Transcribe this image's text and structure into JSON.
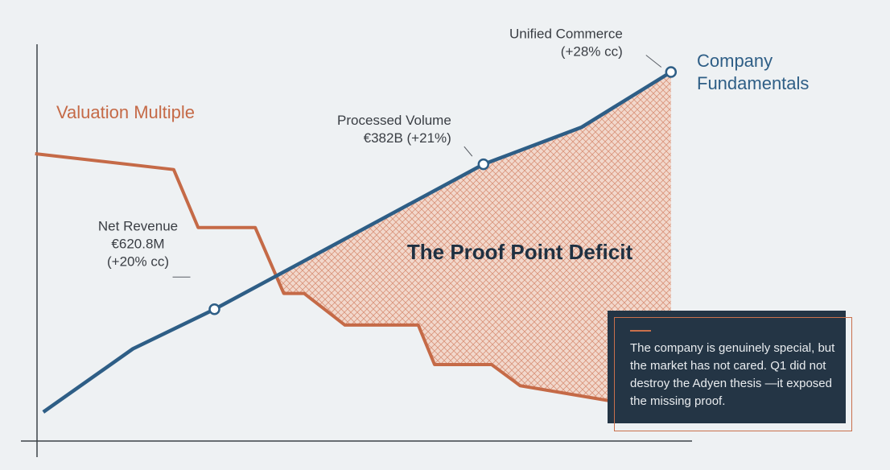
{
  "chart_data": {
    "type": "line",
    "annotation": "The Proof Point Deficit",
    "colors": {
      "valuation": "#c56a47",
      "fundamentals": "#2e5e86",
      "axis": "#3c4248",
      "text": "#3a3e44",
      "panel": "#243545"
    },
    "series": [
      {
        "key": "fundamentals",
        "name": "Company Fundamentals",
        "points": [
          [
            0.06,
            0.55
          ],
          [
            0.17,
            1.75
          ],
          [
            0.27,
            2.5
          ],
          [
            0.6,
            5.25
          ],
          [
            0.72,
            5.95
          ],
          [
            0.83,
            7.0
          ]
        ]
      },
      {
        "key": "valuation",
        "name": "Valuation Multiple",
        "points": [
          [
            0.05,
            5.45
          ],
          [
            0.22,
            5.15
          ],
          [
            0.25,
            4.05
          ],
          [
            0.32,
            4.05
          ],
          [
            0.355,
            2.8
          ],
          [
            0.38,
            2.8
          ],
          [
            0.43,
            2.2
          ],
          [
            0.52,
            2.2
          ],
          [
            0.54,
            1.45
          ],
          [
            0.61,
            1.45
          ],
          [
            0.645,
            1.05
          ],
          [
            0.76,
            0.75
          ]
        ]
      }
    ],
    "callouts": [
      {
        "point": [
          0.27,
          2.5
        ],
        "lines": [
          "Net Revenue",
          "€620.8M",
          "(+20% cc)"
        ]
      },
      {
        "point": [
          0.6,
          5.25
        ],
        "lines": [
          "Processed Volume",
          "€382B (+21%)"
        ]
      },
      {
        "point": [
          0.83,
          7.0
        ],
        "lines": [
          "Unified Commerce",
          "(+28% cc)"
        ]
      }
    ]
  },
  "note": {
    "text": "The company is genuinely special, but the market has not cared. Q1 did not destroy the Adyen thesis —it exposed the missing proof."
  }
}
